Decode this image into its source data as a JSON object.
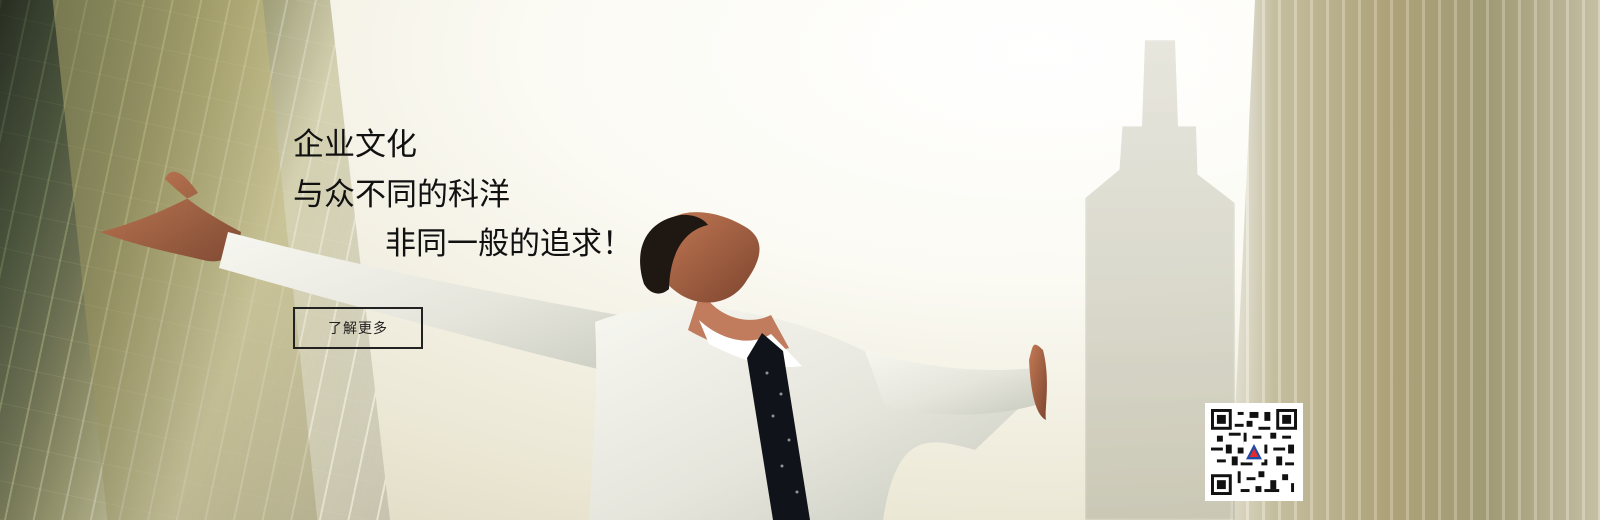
{
  "banner": {
    "title": "企业文化",
    "slogan_line_1": "与众不同的科洋",
    "slogan_line_2": "非同一般的追求！",
    "button_label": "了解更多"
  },
  "colors": {
    "text": "#111111",
    "button_border": "#222222",
    "qr_background": "#ffffff"
  },
  "icons": {
    "qr_code": "qr-code-icon",
    "logo": "logo-mark"
  }
}
